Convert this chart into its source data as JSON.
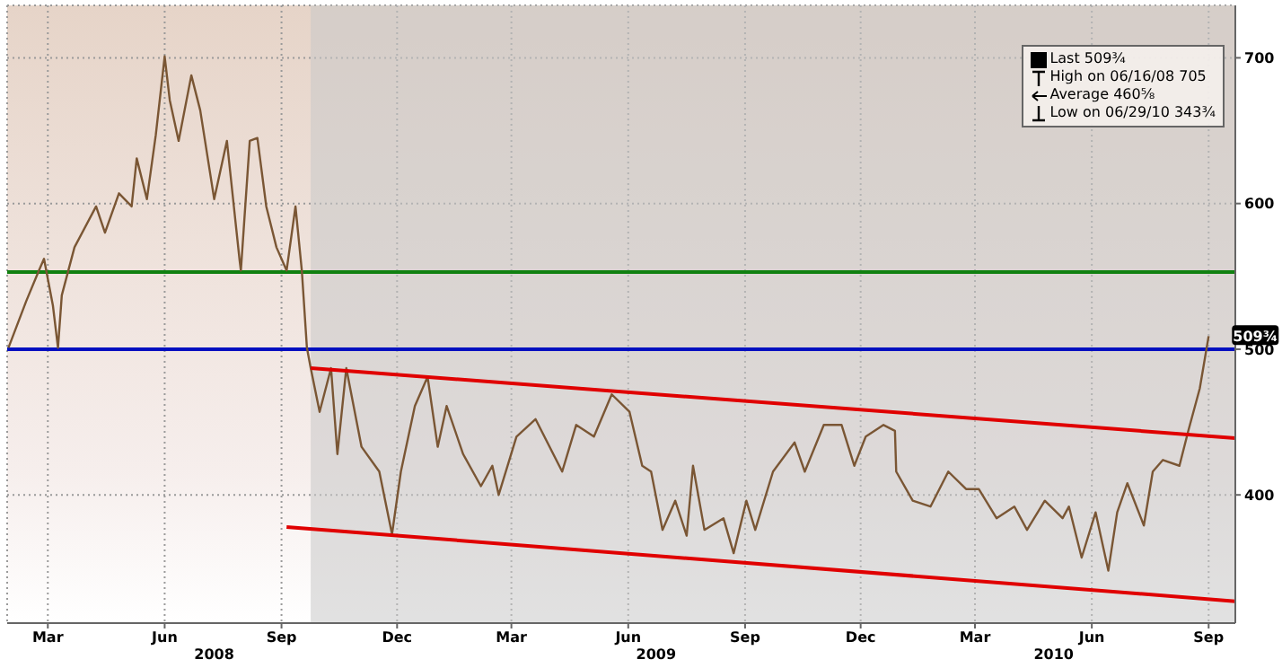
{
  "chart_data": {
    "type": "line",
    "annotations": [
      "Last 509¾",
      "High on 06/16/08 705",
      "Average 460⅝",
      "Low on 06/29/10 343¾",
      {
        "text": "509¾",
        "x": "2010-09-15",
        "y": 509
      }
    ],
    "series": [
      {
        "color": "#7a5634",
        "x": [
          "2008-02-13",
          "2008-02-27",
          "2008-03-08",
          "2008-03-12",
          "2008-03-19",
          "2008-03-23",
          "2008-03-26",
          "2008-04-05",
          "2008-04-22",
          "2008-04-29",
          "2008-05-10",
          "2008-05-20",
          "2008-05-24",
          "2008-06-01",
          "2008-06-08",
          "2008-06-15",
          "2008-06-19",
          "2008-06-26",
          "2008-07-06",
          "2008-07-13",
          "2008-07-24",
          "2008-08-03",
          "2008-08-13",
          "2008-08-14",
          "2008-08-21",
          "2008-08-27",
          "2008-09-03",
          "2008-09-11",
          "2008-09-19",
          "2008-09-26",
          "2008-10-01",
          "2008-10-05",
          "2008-10-08",
          "2008-10-15",
          "2008-10-24",
          "2008-10-29",
          "2008-11-05",
          "2008-11-17",
          "2008-12-01",
          "2008-12-11",
          "2008-12-18",
          "2008-12-29",
          "2009-01-08",
          "2009-01-16",
          "2009-01-23",
          "2009-02-05",
          "2009-02-19",
          "2009-02-28",
          "2009-03-05",
          "2009-03-19",
          "2009-04-03",
          "2009-04-24",
          "2009-05-05",
          "2009-05-19",
          "2009-06-02",
          "2009-06-16",
          "2009-06-26",
          "2009-07-03",
          "2009-07-12",
          "2009-07-22",
          "2009-07-31",
          "2009-08-05",
          "2009-08-14",
          "2009-08-29",
          "2009-09-06",
          "2009-09-16",
          "2009-09-23",
          "2009-10-07",
          "2009-10-24",
          "2009-11-01",
          "2009-11-16",
          "2009-11-30",
          "2009-12-10",
          "2009-12-19",
          "2010-01-02",
          "2010-01-11",
          "2010-01-12",
          "2010-01-25",
          "2010-02-08",
          "2010-02-22",
          "2010-03-08",
          "2010-03-18",
          "2010-04-01",
          "2010-04-15",
          "2010-04-25",
          "2010-05-09",
          "2010-05-23",
          "2010-05-28",
          "2010-06-07",
          "2010-06-18",
          "2010-06-28",
          "2010-07-05",
          "2010-07-13",
          "2010-07-26",
          "2010-08-02",
          "2010-08-10",
          "2010-08-23",
          "2010-08-30",
          "2010-09-08",
          "2010-09-15"
        ],
        "values": [
          501,
          533,
          554,
          562,
          530,
          501,
          537,
          570,
          598,
          580,
          607,
          598,
          631,
          603,
          647,
          701,
          671,
          643,
          688,
          664,
          603,
          643,
          561,
          554,
          643,
          645,
          598,
          570,
          554,
          598,
          554,
          501,
          487,
          457,
          487,
          428,
          487,
          433,
          416,
          373,
          416,
          461,
          481,
          433,
          461,
          428,
          406,
          420,
          400,
          440,
          452,
          416,
          448,
          440,
          469,
          457,
          420,
          416,
          376,
          396,
          372,
          420,
          376,
          384,
          360,
          396,
          376,
          416,
          436,
          416,
          448,
          448,
          420,
          440,
          448,
          444,
          416,
          396,
          392,
          416,
          404,
          404,
          384,
          392,
          376,
          396,
          384,
          392,
          357,
          388,
          348,
          388,
          408,
          379,
          416,
          424,
          420,
          444,
          473,
          509
        ]
      },
      {
        "type": "line",
        "color": "#e00000",
        "x": [
          "2008-10-08",
          "2010-10-06"
        ],
        "values": [
          487,
          439
        ]
      },
      {
        "type": "line",
        "color": "#e00000",
        "x": [
          "2008-09-19",
          "2010-10-06"
        ],
        "values": [
          378,
          327
        ]
      }
    ],
    "ref_lines": [
      {
        "axis": "y",
        "value": 553,
        "color": "#108010"
      },
      {
        "axis": "y",
        "value": 500,
        "color": "#0010c0"
      }
    ],
    "bands": [
      {
        "axis": "x",
        "from": "2008-10-08",
        "to": "2010-10-06",
        "color": "#c8c8c8"
      }
    ],
    "xlim": [
      "2008-02-12",
      "2010-10-06"
    ],
    "xticks": [
      {
        "value": "2008-03-15",
        "label": "Mar"
      },
      {
        "value": "2008-06-15",
        "label": "Jun"
      },
      {
        "value": "2008-09-15",
        "label": "Sep"
      },
      {
        "value": "2008-12-15",
        "label": "Dec"
      },
      {
        "value": "2009-03-15",
        "label": "Mar"
      },
      {
        "value": "2009-06-15",
        "label": "Jun"
      },
      {
        "value": "2009-09-15",
        "label": "Sep"
      },
      {
        "value": "2009-12-15",
        "label": "Dec"
      },
      {
        "value": "2010-03-15",
        "label": "Mar"
      },
      {
        "value": "2010-06-15",
        "label": "Jun"
      },
      {
        "value": "2010-09-15",
        "label": "Sep"
      }
    ],
    "x2lim": [
      "2008-02-12",
      "2010-10-06"
    ],
    "x2ticks": [
      {
        "value": "2008-07-24",
        "label": "2008"
      },
      {
        "value": "2009-07-07",
        "label": "2009"
      },
      {
        "value": "2010-05-16",
        "label": "2010"
      }
    ],
    "ylim": [
      312,
      736
    ],
    "yticks": [
      400,
      500,
      600,
      700
    ],
    "grid": true,
    "marker": "none",
    "line_style": "solid"
  }
}
